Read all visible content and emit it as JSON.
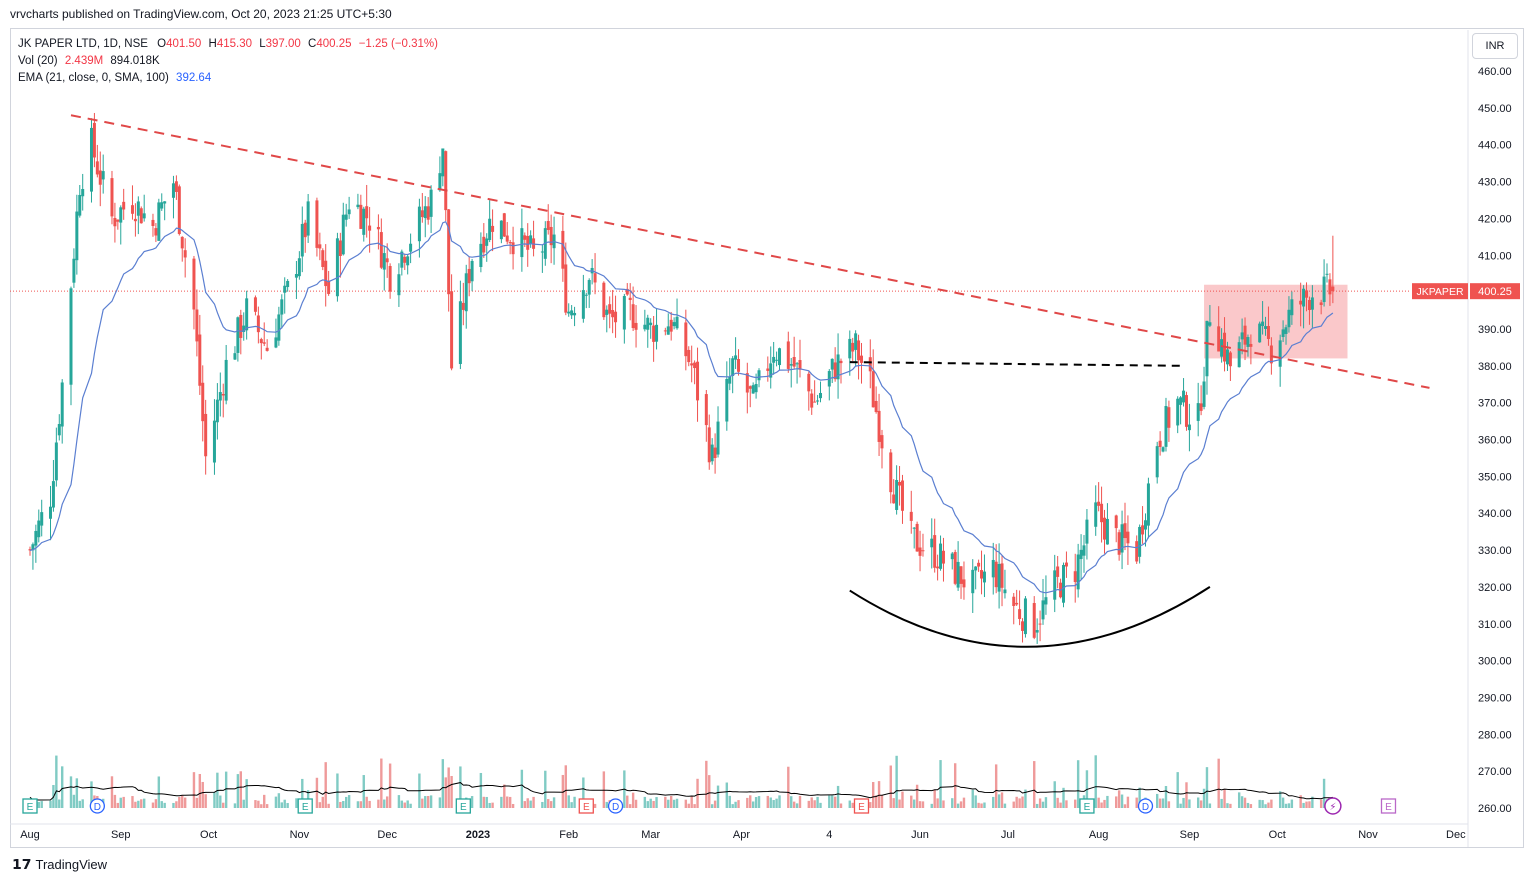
{
  "header": {
    "published": "vrvcharts published on TradingView.com, Oct 20, 2023 21:25 UTC+5:30"
  },
  "legend": {
    "symbol": "JK PAPER LTD, 1D, NSE",
    "o_label": "O",
    "o_value": "401.50",
    "h_label": "H",
    "h_value": "415.30",
    "l_label": "L",
    "l_value": "397.00",
    "c_label": "C",
    "c_value": "400.25",
    "change": "−1.25 (−0.31%)",
    "vol_label": "Vol (20)",
    "vol_value": "2.439M",
    "vol_ma": "894.018K",
    "ema_label": "EMA (21, close, 0, SMA, 100)",
    "ema_value": "392.64"
  },
  "currency": "INR",
  "price_tag": {
    "ticker": "JKPAPER",
    "value": "400.25"
  },
  "footer": {
    "brand": "TradingView"
  },
  "colors": {
    "up": "#26a69a",
    "down": "#ef5350",
    "ema": "#5b7fd1",
    "trend": "#e04848",
    "vol_up": "#80cbc4",
    "vol_down": "#ef9a9a",
    "box": "#f8b5b8"
  },
  "chart_data": {
    "type": "candlestick",
    "title": "JK PAPER LTD, 1D, NSE",
    "yticks": [
      260,
      270,
      280,
      290,
      300,
      310,
      320,
      330,
      340,
      350,
      360,
      370,
      380,
      390,
      400,
      410,
      420,
      430,
      440,
      450,
      460
    ],
    "ylim": [
      257,
      463
    ],
    "xticks": [
      "Aug",
      "Sep",
      "Oct",
      "Nov",
      "Dec",
      "2023",
      "Feb",
      "Mar",
      "Apr",
      "4",
      "Jun",
      "Jul",
      "Aug",
      "Sep",
      "Oct",
      "Nov",
      "Dec"
    ],
    "close_path": [
      [
        "2022-08-01",
        330
      ],
      [
        "2022-08-08",
        345
      ],
      [
        "2022-08-12",
        375
      ],
      [
        "2022-08-18",
        430
      ],
      [
        "2022-08-22",
        440
      ],
      [
        "2022-08-29",
        420
      ],
      [
        "2022-09-05",
        425
      ],
      [
        "2022-09-12",
        418
      ],
      [
        "2022-09-19",
        430
      ],
      [
        "2022-09-26",
        395
      ],
      [
        "2022-09-30",
        355
      ],
      [
        "2022-10-07",
        380
      ],
      [
        "2022-10-14",
        395
      ],
      [
        "2022-10-21",
        385
      ],
      [
        "2022-10-28",
        400
      ],
      [
        "2022-11-04",
        420
      ],
      [
        "2022-11-11",
        400
      ],
      [
        "2022-11-18",
        425
      ],
      [
        "2022-11-25",
        420
      ],
      [
        "2022-12-02",
        405
      ],
      [
        "2022-12-09",
        415
      ],
      [
        "2022-12-16",
        425
      ],
      [
        "2022-12-20",
        440
      ],
      [
        "2022-12-23",
        380
      ],
      [
        "2022-12-30",
        410
      ],
      [
        "2023-01-06",
        420
      ],
      [
        "2023-01-13",
        415
      ],
      [
        "2023-01-20",
        410
      ],
      [
        "2023-01-27",
        415
      ],
      [
        "2023-02-01",
        395
      ],
      [
        "2023-02-08",
        405
      ],
      [
        "2023-02-15",
        392
      ],
      [
        "2023-02-22",
        395
      ],
      [
        "2023-03-01",
        390
      ],
      [
        "2023-03-08",
        392
      ],
      [
        "2023-03-15",
        380
      ],
      [
        "2023-03-22",
        355
      ],
      [
        "2023-03-29",
        380
      ],
      [
        "2023-04-05",
        370
      ],
      [
        "2023-04-12",
        385
      ],
      [
        "2023-04-19",
        380
      ],
      [
        "2023-04-26",
        370
      ],
      [
        "2023-05-03",
        380
      ],
      [
        "2023-05-10",
        385
      ],
      [
        "2023-05-15",
        375
      ],
      [
        "2023-05-22",
        350
      ],
      [
        "2023-05-29",
        333
      ],
      [
        "2023-06-05",
        330
      ],
      [
        "2023-06-12",
        325
      ],
      [
        "2023-06-19",
        320
      ],
      [
        "2023-06-26",
        325
      ],
      [
        "2023-07-03",
        315
      ],
      [
        "2023-07-10",
        310
      ],
      [
        "2023-07-17",
        320
      ],
      [
        "2023-07-24",
        325
      ],
      [
        "2023-07-31",
        340
      ],
      [
        "2023-08-07",
        333
      ],
      [
        "2023-08-14",
        330
      ],
      [
        "2023-08-21",
        360
      ],
      [
        "2023-08-28",
        370
      ],
      [
        "2023-09-04",
        365
      ],
      [
        "2023-09-08",
        395
      ],
      [
        "2023-09-15",
        380
      ],
      [
        "2023-09-22",
        390
      ],
      [
        "2023-09-29",
        385
      ],
      [
        "2023-10-06",
        395
      ],
      [
        "2023-10-13",
        400
      ],
      [
        "2023-10-20",
        400.25
      ]
    ],
    "ema21_end": 392.64,
    "volume_last": "2.439M",
    "volume_ma20": "894.018K",
    "annotations": {
      "trendline": {
        "from": [
          "2022-08-15",
          448
        ],
        "to": [
          "2023-11-22",
          374
        ],
        "style": "dashed",
        "color": "#e04848"
      },
      "neckline": {
        "from": [
          "2023-05-08",
          381
        ],
        "to": [
          "2023-08-29",
          380
        ],
        "style": "dashed",
        "color": "#000000"
      },
      "saucer": {
        "from": [
          "2023-05-08",
          319
        ],
        "bottom": [
          "2023-07-08",
          304
        ],
        "to": [
          "2023-09-08",
          320
        ]
      },
      "box": {
        "from": [
          "2023-09-06",
          382
        ],
        "to": [
          "2023-10-25",
          402
        ]
      },
      "last_price_line": 400.25
    },
    "event_markers": [
      {
        "date": "2022-08-01",
        "kind": "E"
      },
      {
        "date": "2022-08-24",
        "kind": "D"
      },
      {
        "date": "2022-11-03",
        "kind": "E"
      },
      {
        "date": "2022-12-27",
        "kind": "E"
      },
      {
        "date": "2023-02-07",
        "kind": "E"
      },
      {
        "date": "2023-02-17",
        "kind": "D"
      },
      {
        "date": "2023-05-12",
        "kind": "E"
      },
      {
        "date": "2023-07-28",
        "kind": "E"
      },
      {
        "date": "2023-08-17",
        "kind": "D"
      },
      {
        "date": "2023-10-20",
        "kind": "flash"
      },
      {
        "date": "2023-11-08",
        "kind": "E"
      }
    ]
  }
}
